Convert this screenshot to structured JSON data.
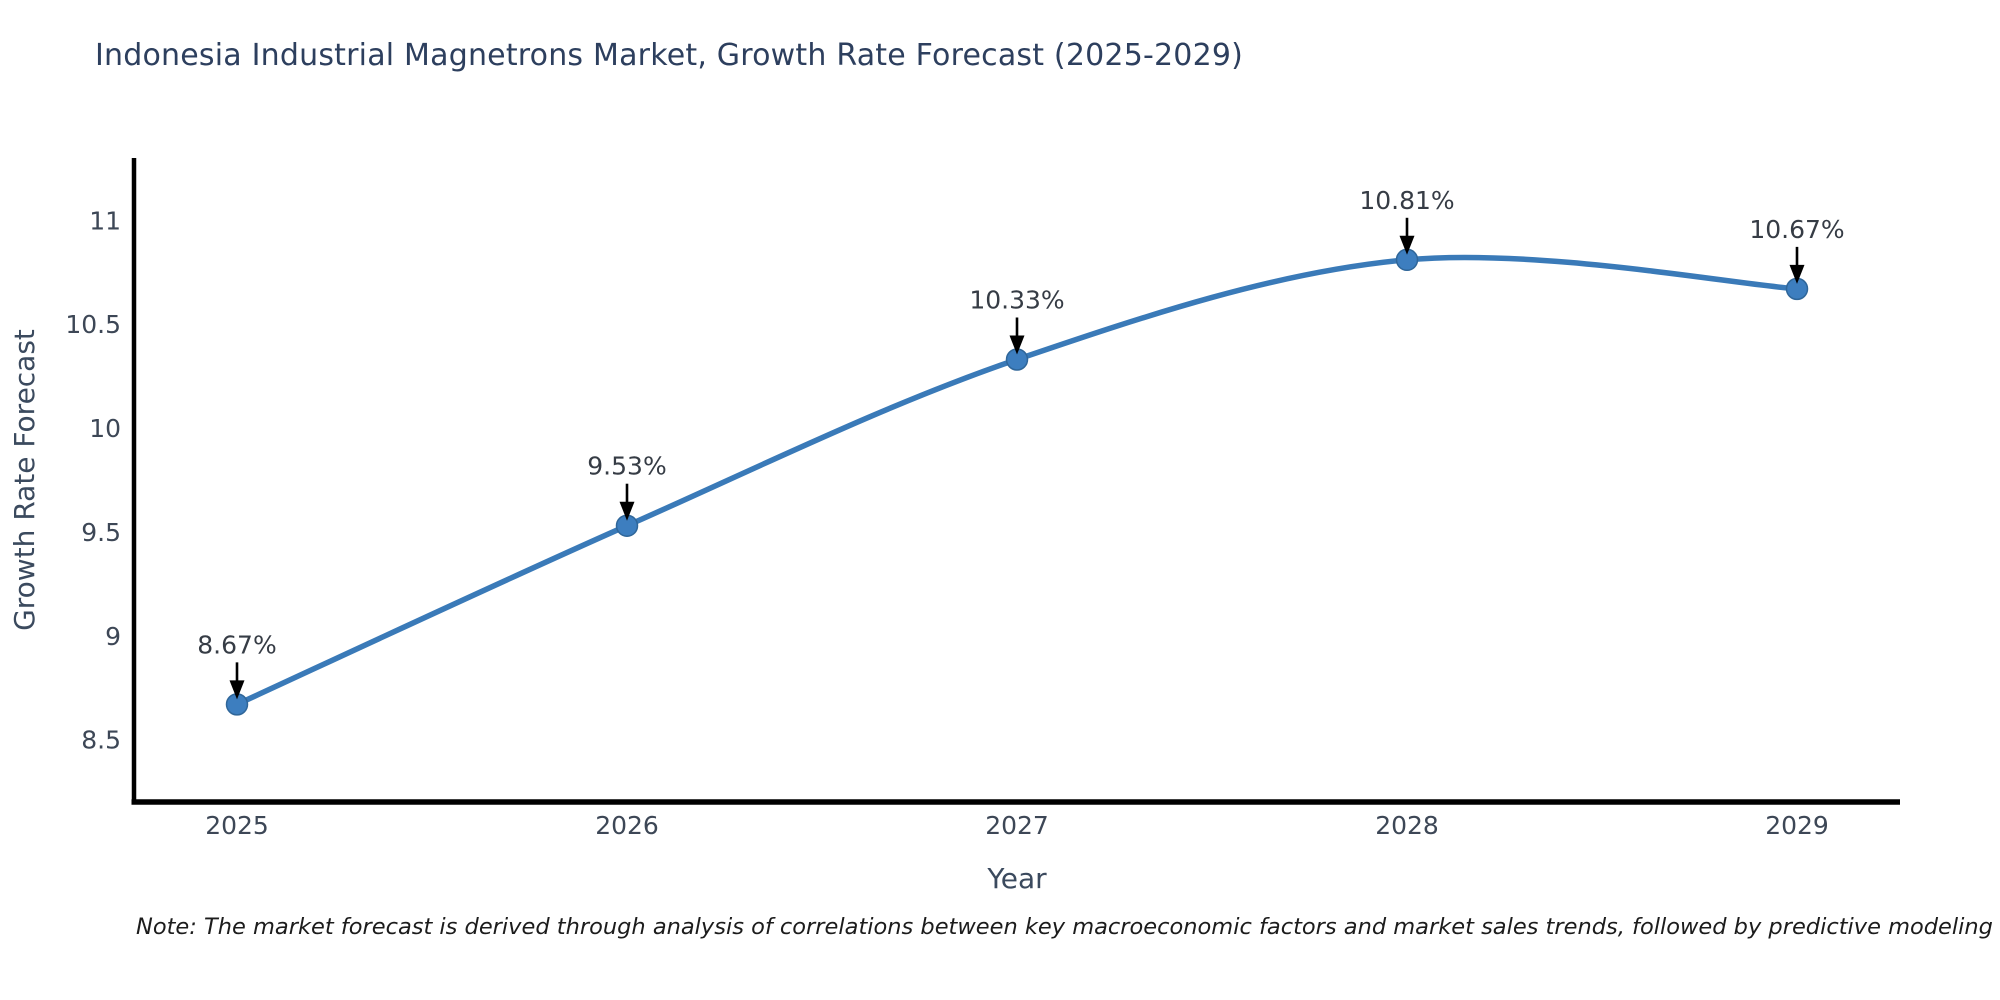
{
  "page": {
    "background": "#ffffff"
  },
  "chart_data": {
    "type": "line",
    "title": "Indonesia Industrial Magnetrons Market, Growth Rate Forecast (2025-2029)",
    "xlabel": "Year",
    "ylabel": "Growth Rate Forecast",
    "categories": [
      "2025",
      "2026",
      "2027",
      "2028",
      "2029"
    ],
    "series": [
      {
        "name": "Growth Rate Forecast",
        "values": [
          8.67,
          9.53,
          10.33,
          10.81,
          10.67
        ]
      }
    ],
    "point_labels": [
      "8.67%",
      "9.53%",
      "10.33%",
      "10.81%",
      "10.67%"
    ],
    "ytick_labels": [
      "8.5",
      "9",
      "9.5",
      "10",
      "10.5",
      "11"
    ],
    "ytick_values": [
      8.5,
      9,
      9.5,
      10,
      10.5,
      11
    ],
    "ylim": [
      8.2,
      11.3
    ],
    "grid": false,
    "legend": false,
    "smooth": true,
    "colors": {
      "line": "#3a7ab8",
      "marker": "#3d7ebf",
      "marker_edge": "#2f6699",
      "axis": "#000000",
      "title_text": "#2d3f5e",
      "tick_text": "#3d4756",
      "axis_label_text": "#3b4a5e",
      "annotation_text": "#363c45",
      "annotation_arrow": "#000000"
    }
  },
  "footnote": {
    "text": "Note: The market forecast is derived through analysis of correlations between key macroeconomic factors and market sales trends, followed by predictive modeling to project future sal",
    "color": "#1c1c1c"
  }
}
